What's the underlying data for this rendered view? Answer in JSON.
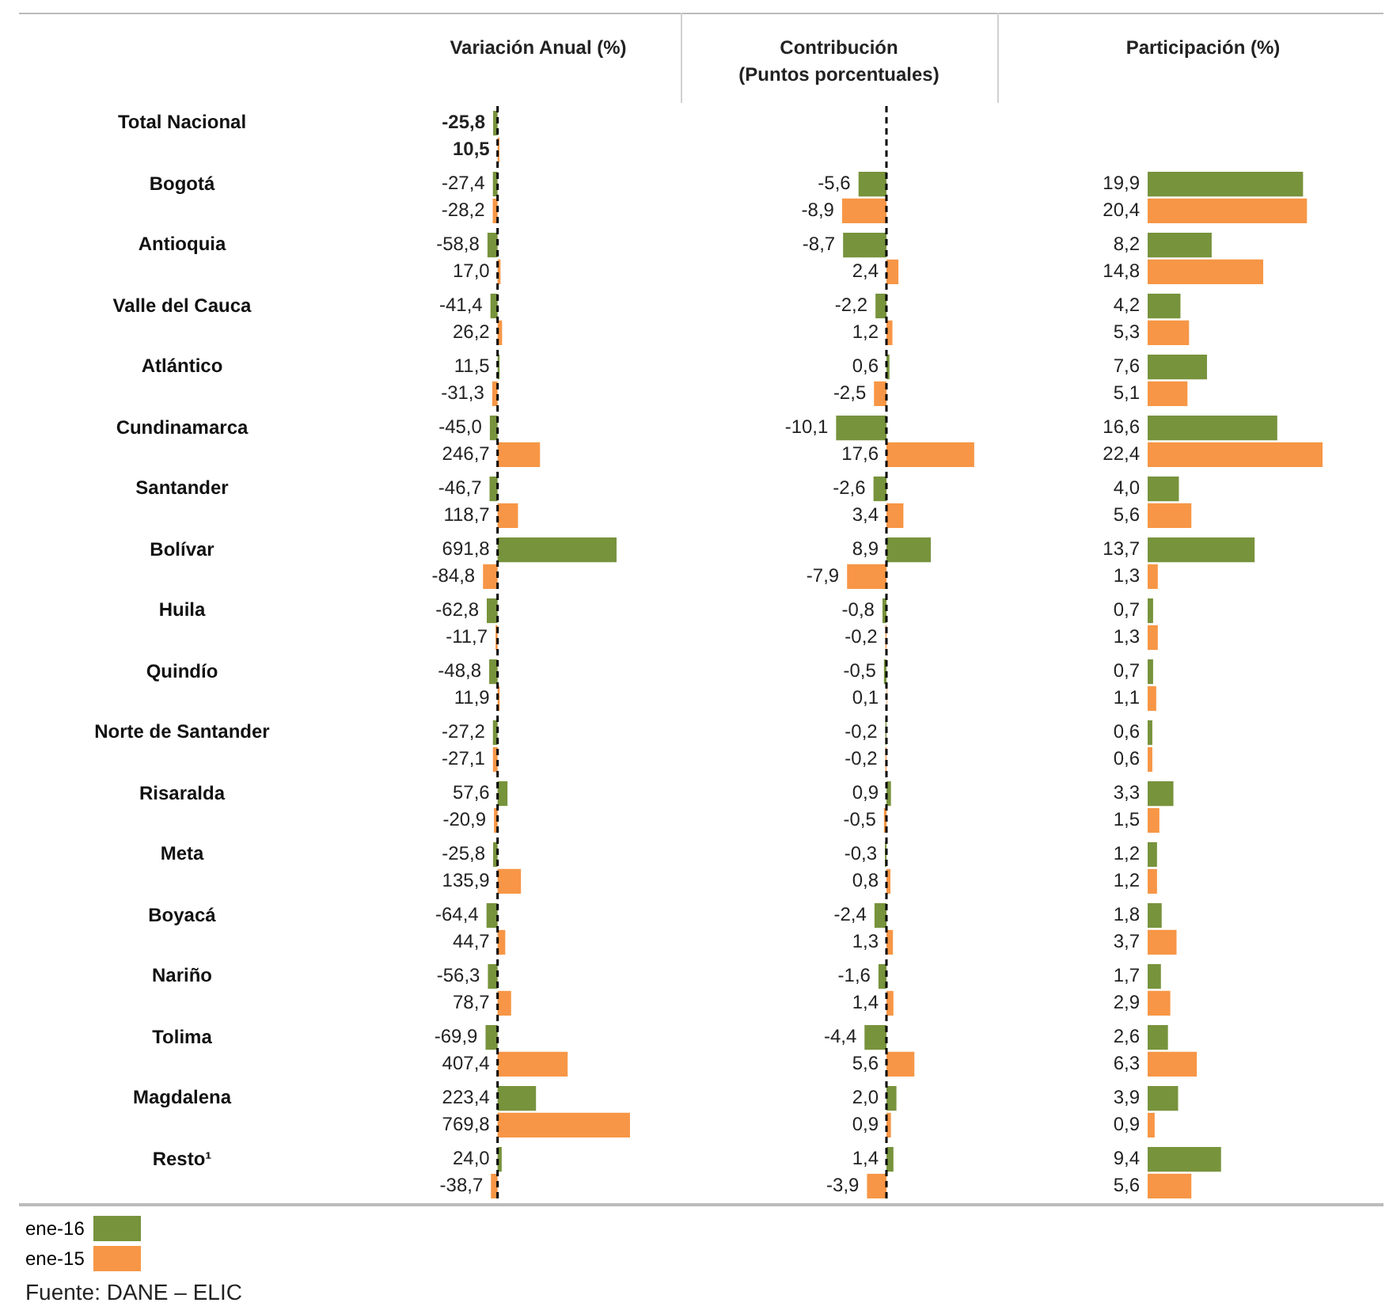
{
  "chart_data": [
    {
      "type": "bar",
      "orientation": "horizontal",
      "title": "Variación Anual (%)",
      "categories": [
        "Total Nacional",
        "Bogotá",
        "Antioquia",
        "Valle del Cauca",
        "Atlántico",
        "Cundinamarca",
        "Santander",
        "Bolívar",
        "Huila",
        "Quindío",
        "Norte de Santander",
        "Risaralda",
        "Meta",
        "Boyacá",
        "Nariño",
        "Tolima",
        "Magdalena",
        "Resto¹"
      ],
      "series": [
        {
          "name": "ene-16",
          "color": "#77933c",
          "values": [
            -25.8,
            -27.4,
            -58.8,
            -41.4,
            11.5,
            -45.0,
            -46.7,
            691.8,
            -62.8,
            -48.8,
            -27.2,
            57.6,
            -25.8,
            -64.4,
            -56.3,
            -69.9,
            223.4,
            24.0
          ],
          "value_labels": [
            "-25,8",
            "-27,4",
            "-58,8",
            "-41,4",
            "11,5",
            "-45,0",
            "-46,7",
            "691,8",
            "-62,8",
            "-48,8",
            "-27,2",
            "57,6",
            "-25,8",
            "-64,4",
            "-56,3",
            "-69,9",
            "223,4",
            "24,0"
          ]
        },
        {
          "name": "ene-15",
          "color": "#f79646",
          "values": [
            10.5,
            -28.2,
            17.0,
            26.2,
            -31.3,
            246.7,
            118.7,
            -84.8,
            -11.7,
            11.9,
            -27.1,
            -20.9,
            135.9,
            44.7,
            78.7,
            407.4,
            769.8,
            -38.7
          ],
          "value_labels": [
            "10,5",
            "-28,2",
            "17,0",
            "26,2",
            "-31,3",
            "246,7",
            "118,7",
            "-84,8",
            "-11,7",
            "11,9",
            "-27,1",
            "-20,9",
            "135,9",
            "44,7",
            "78,7",
            "407,4",
            "769,8",
            "-38,7"
          ]
        }
      ],
      "tick_labels": "y",
      "legend": "bottom left",
      "ref_lines": [
        {
          "axis": "x",
          "value": 0,
          "color": "#000000",
          "line_style": "dashed"
        }
      ],
      "annotations": [
        "Fuente: DANE – ELIC"
      ]
    },
    {
      "type": "bar",
      "orientation": "horizontal",
      "title": "Contribución",
      "subtitle": "(Puntos porcentuales)",
      "categories": [
        null,
        null,
        null,
        null,
        null,
        null,
        null,
        null,
        null,
        null,
        null,
        null,
        null,
        null,
        null,
        null,
        null,
        null
      ],
      "series": [
        {
          "color": "#77933c",
          "values": [
            null,
            -5.6,
            -8.7,
            -2.2,
            0.6,
            -10.1,
            -2.6,
            8.9,
            -0.8,
            -0.5,
            -0.2,
            0.9,
            -0.3,
            -2.4,
            -1.6,
            -4.4,
            2.0,
            1.4
          ],
          "value_labels": [
            null,
            "-5,6",
            "-8,7",
            "-2,2",
            "0,6",
            "-10,1",
            "-2,6",
            "8,9",
            "-0,8",
            "-0,5",
            "-0,2",
            "0,9",
            "-0,3",
            "-2,4",
            "-1,6",
            "-4,4",
            "2,0",
            "1,4"
          ]
        },
        {
          "color": "#f79646",
          "values": [
            null,
            -8.9,
            2.4,
            1.2,
            -2.5,
            17.6,
            3.4,
            -7.9,
            -0.2,
            0.1,
            -0.2,
            -0.5,
            0.8,
            1.3,
            1.4,
            5.6,
            0.9,
            -3.9
          ],
          "value_labels": [
            null,
            "-8,9",
            "2,4",
            "1,2",
            "-2,5",
            "17,6",
            "3,4",
            "-7,9",
            "-0,2",
            "0,1",
            "-0,2",
            "-0,5",
            "0,8",
            "1,3",
            "1,4",
            "5,6",
            "0,9",
            "-3,9"
          ]
        }
      ],
      "tick_labels": false,
      "ref_lines": [
        {
          "axis": "x",
          "value": 0,
          "color": "#000000",
          "line_style": "dashed"
        }
      ]
    },
    {
      "type": "bar",
      "orientation": "horizontal",
      "title": "Participación (%)",
      "categories": [
        null,
        null,
        null,
        null,
        null,
        null,
        null,
        null,
        null,
        null,
        null,
        null,
        null,
        null,
        null,
        null,
        null,
        null
      ],
      "series": [
        {
          "color": "#77933c",
          "values": [
            null,
            19.9,
            8.2,
            4.2,
            7.6,
            16.6,
            4.0,
            13.7,
            0.7,
            0.7,
            0.6,
            3.3,
            1.2,
            1.8,
            1.7,
            2.6,
            3.9,
            9.4
          ],
          "value_labels": [
            null,
            "19,9",
            "8,2",
            "4,2",
            "7,6",
            "16,6",
            "4,0",
            "13,7",
            "0,7",
            "0,7",
            "0,6",
            "3,3",
            "1,2",
            "1,8",
            "1,7",
            "2,6",
            "3,9",
            "9,4"
          ]
        },
        {
          "color": "#f79646",
          "values": [
            null,
            20.4,
            14.8,
            5.3,
            5.1,
            22.4,
            5.6,
            1.3,
            1.3,
            1.1,
            0.6,
            1.5,
            1.2,
            3.7,
            2.9,
            6.3,
            0.9,
            5.6
          ],
          "value_labels": [
            null,
            "20,4",
            "14,8",
            "5,3",
            "5,1",
            "22,4",
            "5,6",
            "1,3",
            "1,3",
            "1,1",
            "0,6",
            "1,5",
            "1,2",
            "3,7",
            "2,9",
            "6,3",
            "0,9",
            "5,6"
          ]
        }
      ],
      "tick_labels": false
    }
  ]
}
